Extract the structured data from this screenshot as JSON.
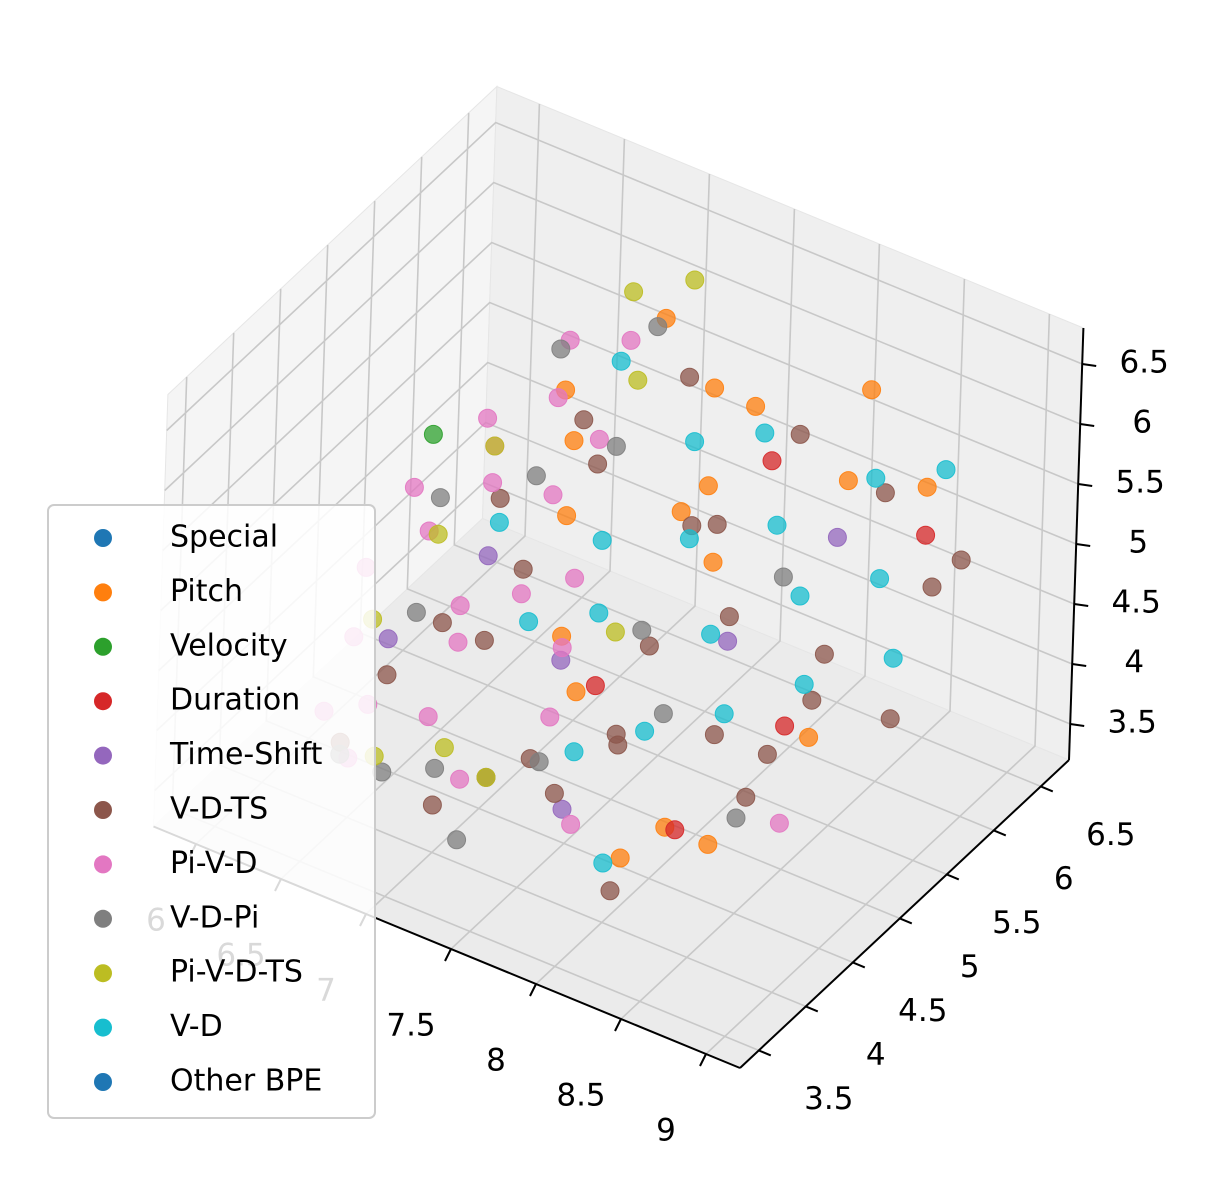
{
  "chart_data": {
    "type": "scatter3d",
    "xlim": [
      5.75,
      9.2
    ],
    "ylim": [
      3.3,
      6.8
    ],
    "zlim": [
      3.2,
      6.8
    ],
    "xticks": [
      6.0,
      6.5,
      7.0,
      7.5,
      8.0,
      8.5,
      9.0
    ],
    "yticks": [
      3.5,
      4.0,
      4.5,
      5.0,
      5.5,
      6.0,
      6.5
    ],
    "zticks": [
      3.5,
      4.0,
      4.5,
      5.0,
      5.5,
      6.0,
      6.5
    ],
    "grid": true,
    "legend": "lower left",
    "series": [
      {
        "name": "Special",
        "color": "#1f77b4",
        "x": [],
        "y": [],
        "z": []
      },
      {
        "name": "Pitch",
        "color": "#ff7f0e",
        "x": [
          7.2,
          7.6,
          8.0,
          8.3,
          7.9,
          8.5,
          7.4,
          8.1,
          8.8,
          7.0,
          7.7,
          8.6,
          6.9,
          8.2,
          7.5,
          8.9,
          7.8,
          8.4
        ],
        "y": [
          6.0,
          5.8,
          5.5,
          6.2,
          5.2,
          5.6,
          4.6,
          4.9,
          5.9,
          5.3,
          4.2,
          4.0,
          5.6,
          3.8,
          4.4,
          4.5,
          5.1,
          3.9
        ],
        "z": [
          6.3,
          6.1,
          6.4,
          6.2,
          5.9,
          6.0,
          5.8,
          5.6,
          5.9,
          6.1,
          4.8,
          4.2,
          5.4,
          4.0,
          5.0,
          4.9,
          5.7,
          4.3
        ]
      },
      {
        "name": "Velocity",
        "color": "#2ca02c",
        "x": [
          6.4
        ],
        "y": [
          5.0
        ],
        "z": [
          5.6
        ]
      },
      {
        "name": "Duration",
        "color": "#d62728",
        "x": [
          8.0,
          8.6,
          8.3,
          7.6,
          8.8
        ],
        "y": [
          5.7,
          4.8,
          4.2,
          4.6,
          5.9
        ],
        "z": [
          5.8,
          4.6,
          4.0,
          4.5,
          5.5
        ]
      },
      {
        "name": "Time-Shift",
        "color": "#9467bd",
        "x": [
          6.9,
          7.5,
          8.2,
          7.8,
          6.6,
          8.5
        ],
        "y": [
          4.7,
          4.4,
          4.9,
          3.9,
          4.2,
          5.5
        ],
        "z": [
          5.1,
          4.8,
          5.0,
          4.1,
          4.6,
          5.6
        ]
      },
      {
        "name": "V-D-TS",
        "color": "#8c564b",
        "x": [
          6.6,
          7.0,
          7.3,
          7.8,
          8.1,
          8.5,
          8.9,
          6.8,
          7.2,
          7.6,
          8.0,
          8.4,
          8.8,
          6.5,
          7.1,
          7.5,
          7.9,
          8.3,
          8.7,
          9.0,
          6.9,
          7.4,
          7.7,
          8.2,
          8.6,
          7.0,
          7.8,
          8.4,
          6.7,
          8.1
        ],
        "y": [
          4.2,
          4.5,
          4.0,
          4.8,
          5.1,
          5.4,
          5.8,
          5.0,
          5.3,
          5.6,
          6.0,
          6.2,
          6.3,
          3.9,
          3.8,
          4.1,
          4.3,
          4.6,
          4.9,
          5.2,
          5.7,
          5.9,
          4.0,
          3.7,
          4.4,
          4.9,
          5.5,
          5.0,
          4.6,
          3.9
        ],
        "z": [
          4.3,
          4.6,
          4.0,
          4.8,
          5.0,
          4.7,
          5.2,
          5.3,
          5.6,
          5.1,
          5.8,
          5.4,
          5.0,
          3.9,
          3.8,
          4.2,
          4.4,
          4.5,
          4.8,
          4.6,
          5.5,
          6.0,
          4.1,
          3.8,
          4.3,
          4.9,
          5.3,
          4.1,
          4.5,
          4.9
        ]
      },
      {
        "name": "Pi-V-D",
        "color": "#e377c2",
        "x": [
          6.3,
          6.5,
          6.7,
          6.4,
          6.6,
          6.9,
          7.1,
          6.5,
          6.8,
          7.0,
          7.3,
          6.4,
          6.6,
          6.9,
          7.2,
          7.5,
          6.7,
          7.0,
          8.8,
          7.8,
          6.3,
          6.6,
          7.4,
          6.8,
          7.1
        ],
        "y": [
          4.5,
          4.8,
          5.1,
          4.2,
          4.0,
          4.4,
          4.7,
          5.4,
          5.6,
          5.2,
          4.9,
          3.9,
          3.8,
          4.1,
          3.9,
          4.3,
          5.9,
          6.0,
          4.4,
          4.0,
          5.0,
          5.3,
          4.6,
          4.6,
          5.5
        ],
        "z": [
          4.8,
          5.0,
          5.3,
          4.5,
          4.2,
          4.6,
          4.9,
          5.5,
          5.7,
          5.3,
          5.0,
          4.1,
          3.9,
          4.2,
          4.0,
          4.4,
          5.9,
          6.0,
          4.2,
          3.9,
          5.1,
          5.4,
          4.7,
          4.7,
          5.6
        ]
      },
      {
        "name": "V-D-Pi",
        "color": "#7f7f7f",
        "x": [
          6.5,
          6.8,
          7.0,
          7.3,
          6.6,
          7.5,
          6.9,
          7.2,
          8.0,
          8.6,
          6.4,
          7.7,
          6.7,
          7.1,
          8.3
        ],
        "y": [
          3.9,
          3.8,
          4.0,
          3.7,
          4.5,
          4.2,
          5.2,
          5.5,
          4.6,
          4.3,
          5.1,
          4.9,
          5.8,
          6.1,
          5.3
        ],
        "z": [
          3.8,
          3.9,
          3.9,
          3.7,
          4.6,
          4.1,
          5.4,
          5.6,
          4.5,
          4.2,
          5.0,
          4.8,
          5.9,
          6.1,
          5.3
        ]
      },
      {
        "name": "Pi-V-D-TS",
        "color": "#bcbd22",
        "x": [
          6.4,
          6.7,
          7.0,
          6.6,
          7.3,
          6.9,
          7.6,
          6.5,
          7.1,
          7.2
        ],
        "y": [
          4.4,
          3.9,
          4.1,
          5.3,
          4.0,
          6.2,
          4.8,
          4.9,
          5.9,
          6.3
        ],
        "z": [
          4.5,
          3.9,
          4.0,
          5.4,
          4.0,
          6.2,
          4.8,
          4.9,
          5.8,
          6.4
        ]
      },
      {
        "name": "V-D",
        "color": "#17becf",
        "x": [
          7.6,
          7.9,
          8.2,
          8.5,
          8.8,
          7.4,
          7.8,
          8.1,
          8.4,
          8.7,
          6.8,
          7.2,
          7.5,
          8.0,
          8.3,
          8.6,
          7.0,
          7.7,
          8.9,
          8.1
        ],
        "y": [
          5.6,
          5.8,
          5.4,
          5.9,
          6.1,
          5.0,
          5.2,
          4.9,
          5.3,
          5.6,
          5.0,
          4.6,
          4.8,
          4.4,
          4.7,
          5.0,
          5.9,
          4.2,
          5.4,
          3.8
        ],
        "z": [
          5.8,
          5.9,
          5.6,
          5.8,
          5.9,
          5.3,
          5.4,
          5.0,
          5.2,
          5.3,
          5.1,
          4.8,
          4.9,
          4.5,
          4.6,
          4.8,
          5.9,
          4.3,
          4.9,
          3.9
        ]
      },
      {
        "name": "Other BPE",
        "color": "#1f77b4",
        "x": [],
        "y": [],
        "z": []
      }
    ]
  }
}
